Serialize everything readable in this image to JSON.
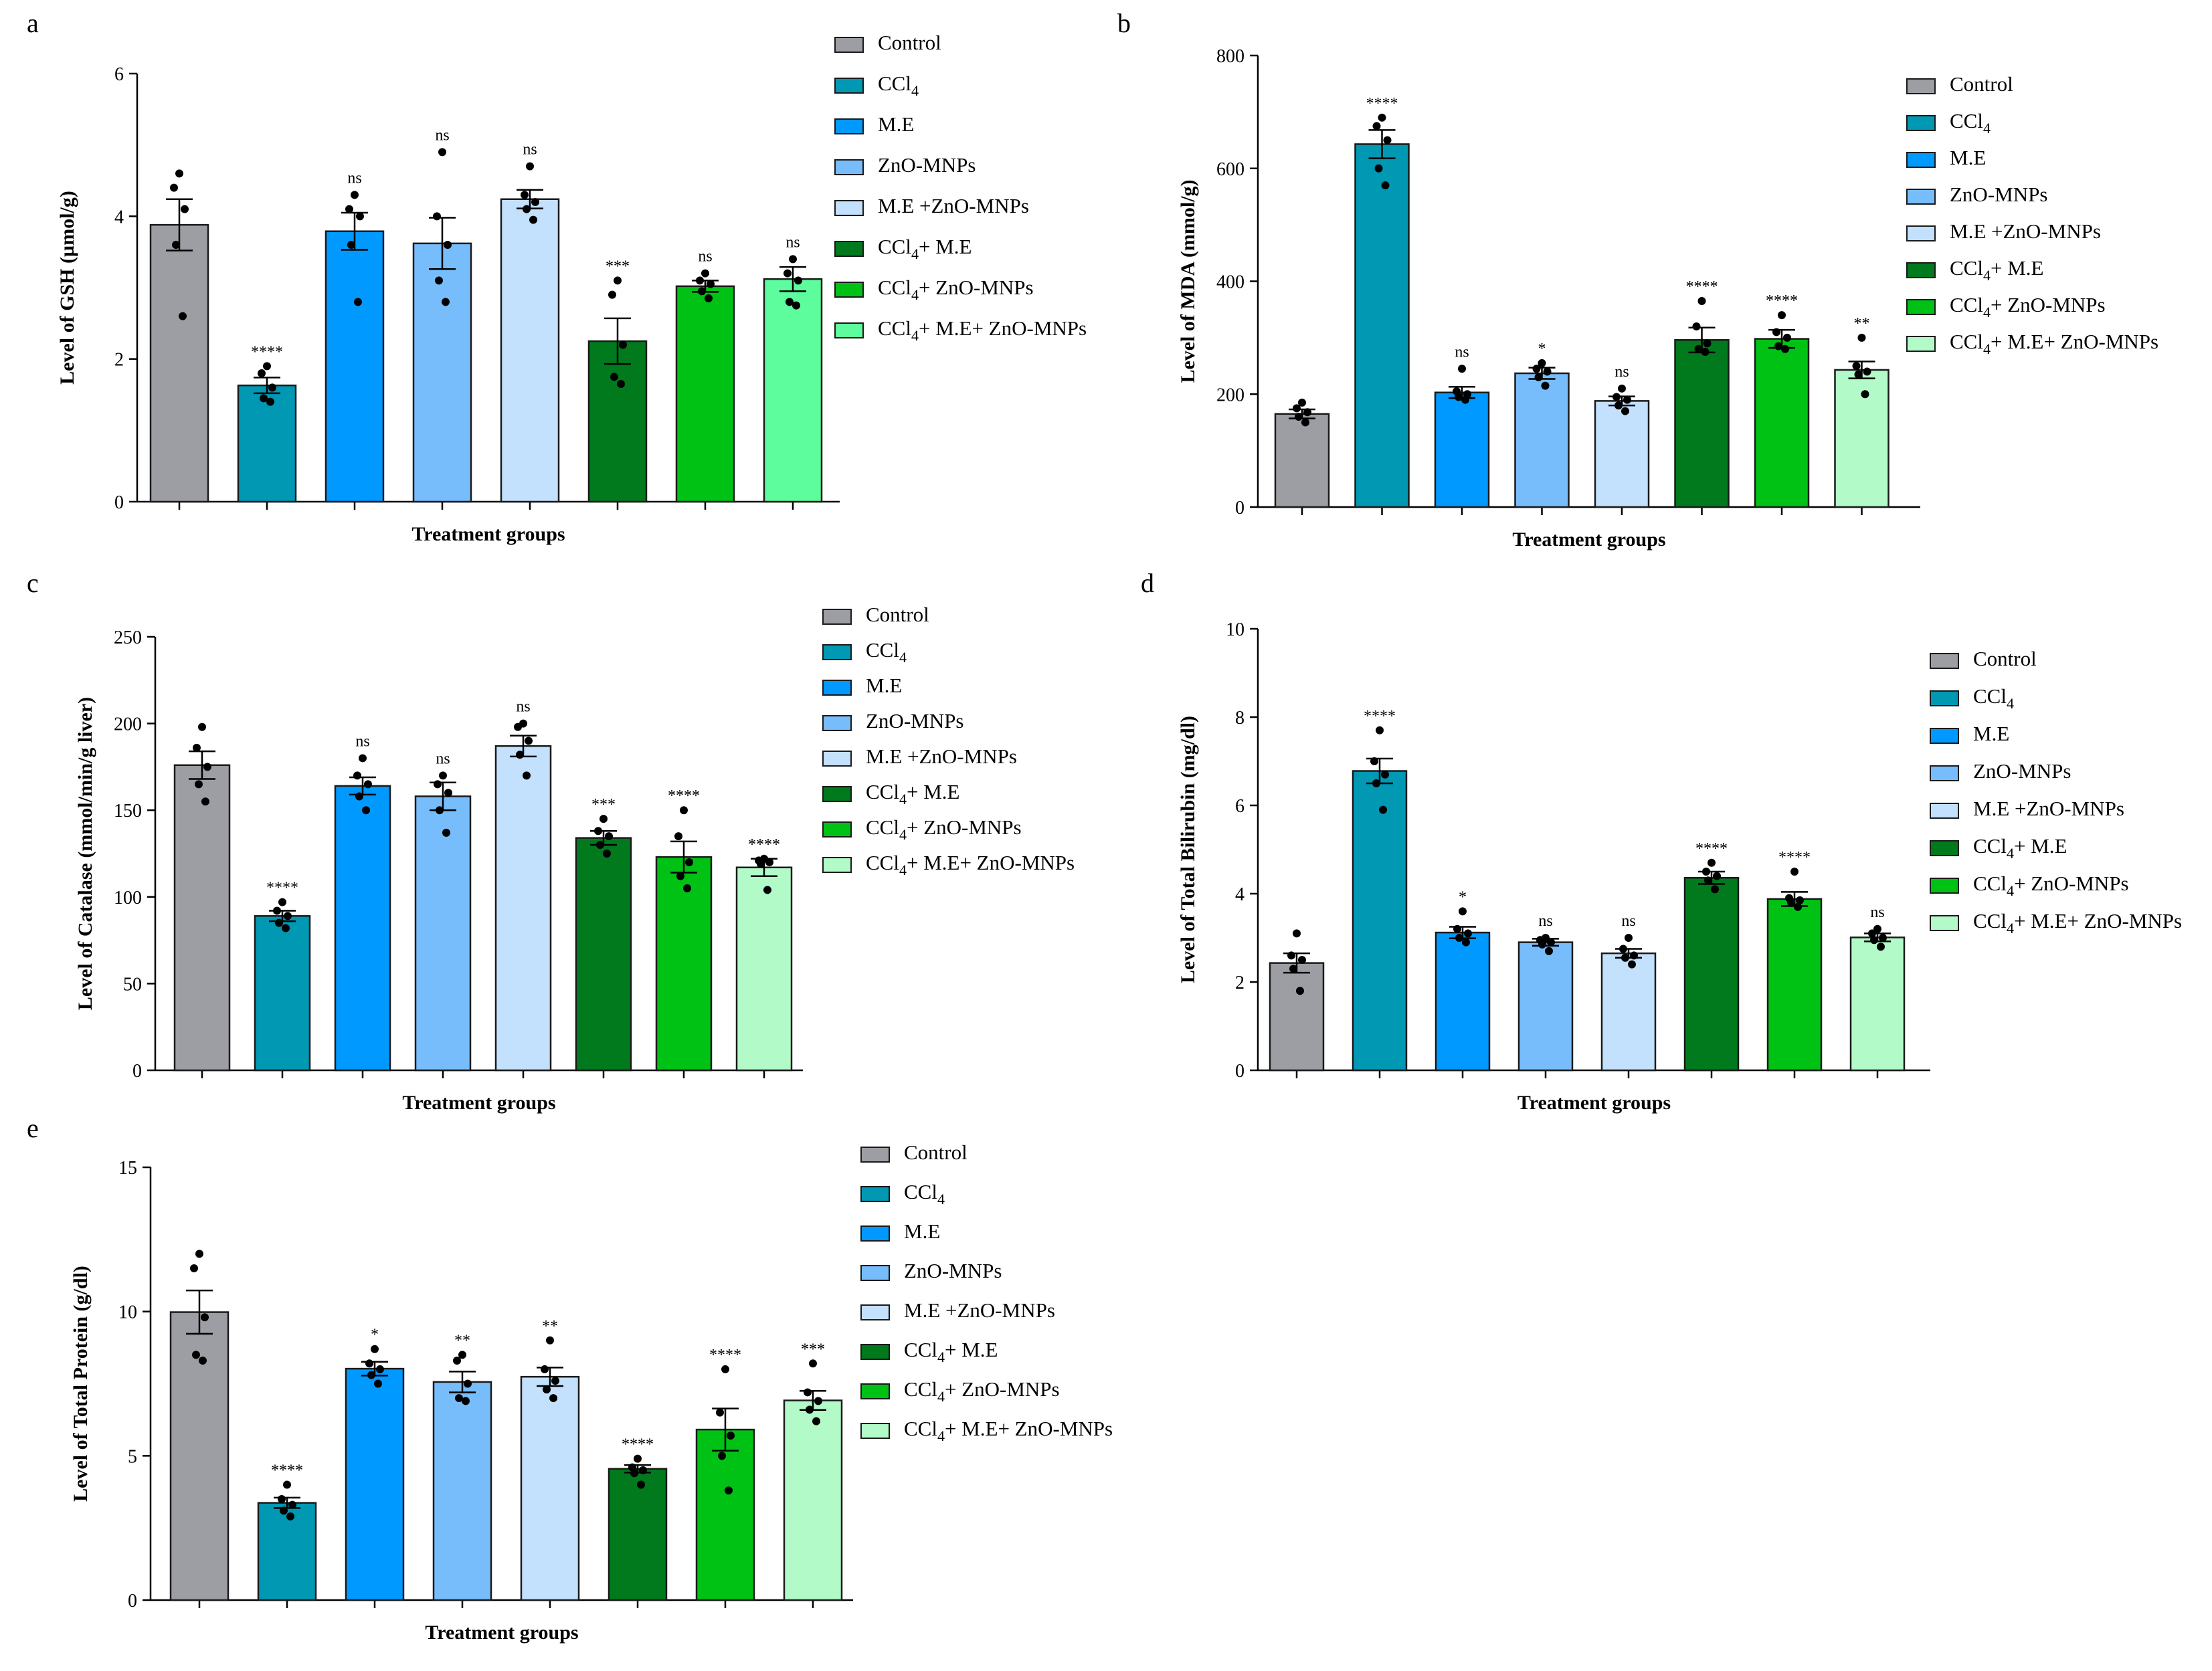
{
  "figure": {
    "groups": [
      "Control",
      "CCl4",
      "M.E",
      "ZnO-MNPs",
      "M.E +ZnO-MNPs",
      "CCl4+ M.E",
      "CCl4+ ZnO-MNPs",
      "CCl4+ M.E+ ZnO-MNPs"
    ],
    "legend_labels": [
      {
        "text": "Control"
      },
      {
        "pre": "CCl",
        "sub": "4",
        "post": ""
      },
      {
        "text": "M.E"
      },
      {
        "text": "ZnO-MNPs"
      },
      {
        "text": "M.E +ZnO-MNPs"
      },
      {
        "pre": "CCl",
        "sub": "4",
        "post": "+ M.E"
      },
      {
        "pre": "CCl",
        "sub": "4",
        "post": "+ ZnO-MNPs"
      },
      {
        "pre": "CCl",
        "sub": "4",
        "post": "+ M.E+ ZnO-MNPs"
      }
    ],
    "colors": {
      "default": [
        "#9d9ea3",
        "#0098b3",
        "#0099ff",
        "#77bdfc",
        "#c3e0fc",
        "#007a1c",
        "#00c214",
        "#5dfc9c"
      ],
      "light_last": [
        "#9d9ea3",
        "#0098b3",
        "#0099ff",
        "#77bdfc",
        "#c3e0fc",
        "#007a1c",
        "#00c214",
        "#b2fac8"
      ],
      "bar_stroke": "#1a1a1a"
    }
  },
  "chart_data": [
    {
      "id": "a",
      "type": "bar",
      "panel_label": "a",
      "title": "",
      "xlabel": "Treatment groups",
      "ylabel": "Level of GSH (µmol/g)",
      "ylim": [
        0,
        6
      ],
      "yticks": [
        0,
        2,
        4,
        6
      ],
      "categories": [
        "Control",
        "CCl4",
        "M.E",
        "ZnO-MNPs",
        "M.E +ZnO-MNPs",
        "CCl4+ M.E",
        "CCl4+ ZnO-MNPs",
        "CCl4+ M.E+ ZnO-MNPs"
      ],
      "values": [
        3.88,
        1.63,
        3.79,
        3.62,
        4.24,
        2.25,
        3.02,
        3.12
      ],
      "errors": [
        0.36,
        0.11,
        0.26,
        0.36,
        0.13,
        0.32,
        0.08,
        0.17
      ],
      "points": [
        [
          4.6,
          4.4,
          4.1,
          3.6,
          2.6
        ],
        [
          1.9,
          1.8,
          1.6,
          1.45,
          1.4
        ],
        [
          4.3,
          4.1,
          4.0,
          3.6,
          2.8
        ],
        [
          4.9,
          4.0,
          3.6,
          3.1,
          2.8
        ],
        [
          4.7,
          4.3,
          4.2,
          4.1,
          3.95
        ],
        [
          3.1,
          2.9,
          2.2,
          1.75,
          1.65
        ],
        [
          3.2,
          3.1,
          3.05,
          2.95,
          2.85
        ],
        [
          3.4,
          3.2,
          3.1,
          2.8,
          2.75
        ]
      ],
      "significance": [
        "",
        "****",
        "ns",
        "ns",
        "ns",
        "***",
        "ns",
        "ns"
      ],
      "legend_placement": "top-right",
      "palette": "default"
    },
    {
      "id": "b",
      "type": "bar",
      "panel_label": "b",
      "title": "",
      "xlabel": "Treatment groups",
      "ylabel": "Level of MDA (mmol/g)",
      "ylim": [
        0,
        800
      ],
      "yticks": [
        0,
        200,
        400,
        600,
        800
      ],
      "categories": [
        "Control",
        "CCl4",
        "M.E",
        "ZnO-MNPs",
        "M.E +ZnO-MNPs",
        "CCl4+ M.E",
        "CCl4+ ZnO-MNPs",
        "CCl4+ M.E+ ZnO-MNPs"
      ],
      "values": [
        165,
        643,
        203,
        237,
        188,
        296,
        298,
        243
      ],
      "errors": [
        8,
        25,
        10,
        10,
        8,
        22,
        16,
        15
      ],
      "points": [
        [
          185,
          175,
          168,
          160,
          150
        ],
        [
          690,
          675,
          650,
          600,
          570
        ],
        [
          245,
          205,
          200,
          195,
          190
        ],
        [
          255,
          245,
          240,
          230,
          215
        ],
        [
          210,
          195,
          190,
          180,
          170
        ],
        [
          365,
          320,
          290,
          280,
          275
        ],
        [
          340,
          310,
          300,
          285,
          280
        ],
        [
          300,
          250,
          240,
          235,
          200
        ]
      ],
      "significance": [
        "",
        "****",
        "ns",
        "*",
        "ns",
        "****",
        "****",
        "**"
      ],
      "legend_placement": "top-right",
      "palette": "light_last"
    },
    {
      "id": "c",
      "type": "bar",
      "panel_label": "c",
      "title": "",
      "xlabel": "Treatment groups",
      "ylabel": "Level of Catalase (mmol/min/g liver)",
      "ylim": [
        0,
        250
      ],
      "yticks": [
        0,
        50,
        100,
        150,
        200,
        250
      ],
      "categories": [
        "Control",
        "CCl4",
        "M.E",
        "ZnO-MNPs",
        "M.E +ZnO-MNPs",
        "CCl4+ M.E",
        "CCl4+ ZnO-MNPs",
        "CCl4+ M.E+ ZnO-MNPs"
      ],
      "values": [
        176,
        89,
        164,
        158,
        187,
        134,
        123,
        117
      ],
      "errors": [
        8,
        3,
        5,
        8,
        6,
        4,
        9,
        5
      ],
      "points": [
        [
          198,
          186,
          175,
          165,
          155
        ],
        [
          97,
          92,
          89,
          85,
          82
        ],
        [
          180,
          170,
          165,
          158,
          150
        ],
        [
          170,
          165,
          160,
          150,
          137
        ],
        [
          200,
          198,
          190,
          182,
          170
        ],
        [
          145,
          138,
          135,
          130,
          125
        ],
        [
          150,
          135,
          120,
          112,
          105
        ],
        [
          122,
          121,
          120,
          119,
          104
        ]
      ],
      "significance": [
        "",
        "****",
        "ns",
        "ns",
        "ns",
        "***",
        "****",
        "****"
      ],
      "legend_placement": "top-right",
      "palette": "light_last"
    },
    {
      "id": "d",
      "type": "bar",
      "panel_label": "d",
      "title": "",
      "xlabel": "Treatment groups",
      "ylabel": "Level of Total Bilirubin (mg/dl)",
      "ylim": [
        0,
        10
      ],
      "yticks": [
        0,
        2,
        4,
        6,
        8,
        10
      ],
      "categories": [
        "Control",
        "CCl4",
        "M.E",
        "ZnO-MNPs",
        "M.E +ZnO-MNPs",
        "CCl4+ M.E",
        "CCl4+ ZnO-MNPs",
        "CCl4+ M.E+ ZnO-MNPs"
      ],
      "values": [
        2.43,
        6.78,
        3.12,
        2.9,
        2.65,
        4.36,
        3.88,
        3.01
      ],
      "errors": [
        0.22,
        0.28,
        0.13,
        0.08,
        0.1,
        0.14,
        0.16,
        0.09
      ],
      "points": [
        [
          3.1,
          2.6,
          2.5,
          2.3,
          1.8
        ],
        [
          7.7,
          7.0,
          6.7,
          6.5,
          5.9
        ],
        [
          3.6,
          3.2,
          3.1,
          3.0,
          2.9
        ],
        [
          3.0,
          2.95,
          2.9,
          2.85,
          2.7
        ],
        [
          3.0,
          2.75,
          2.6,
          2.55,
          2.4
        ],
        [
          4.7,
          4.5,
          4.4,
          4.3,
          4.1
        ],
        [
          4.5,
          3.9,
          3.85,
          3.8,
          3.7
        ],
        [
          3.2,
          3.1,
          3.0,
          2.95,
          2.8
        ]
      ],
      "significance": [
        "",
        "****",
        "*",
        "ns",
        "ns",
        "****",
        "****",
        "ns"
      ],
      "legend_placement": "top-right",
      "palette": "light_last"
    },
    {
      "id": "e",
      "type": "bar",
      "panel_label": "e",
      "title": "",
      "xlabel": "Treatment groups",
      "ylabel": "Level of Total Protein (g/dl)",
      "ylim": [
        0,
        15
      ],
      "yticks": [
        0,
        5,
        10,
        15
      ],
      "categories": [
        "Control",
        "CCl4",
        "M.E",
        "ZnO-MNPs",
        "M.E +ZnO-MNPs",
        "CCl4+ M.E",
        "CCl4+ ZnO-MNPs",
        "CCl4+ M.E+ ZnO-MNPs"
      ],
      "values": [
        9.98,
        3.37,
        8.02,
        7.56,
        7.74,
        4.55,
        5.91,
        6.92
      ],
      "errors": [
        0.75,
        0.18,
        0.24,
        0.36,
        0.32,
        0.13,
        0.73,
        0.33
      ],
      "points": [
        [
          12.0,
          11.5,
          9.8,
          8.5,
          8.3
        ],
        [
          4.0,
          3.5,
          3.3,
          3.1,
          2.9
        ],
        [
          8.7,
          8.2,
          8.0,
          7.8,
          7.5
        ],
        [
          8.5,
          8.3,
          7.5,
          7.0,
          6.9
        ],
        [
          9.0,
          8.0,
          7.6,
          7.3,
          7.0
        ],
        [
          4.9,
          4.6,
          4.5,
          4.4,
          4.0
        ],
        [
          8.0,
          6.5,
          5.7,
          5.0,
          3.8
        ],
        [
          8.2,
          7.2,
          6.9,
          6.6,
          6.2
        ]
      ],
      "significance": [
        "",
        "****",
        "*",
        "**",
        "**",
        "****",
        "****",
        "***"
      ],
      "legend_placement": "top-right",
      "palette": "light_last"
    }
  ]
}
